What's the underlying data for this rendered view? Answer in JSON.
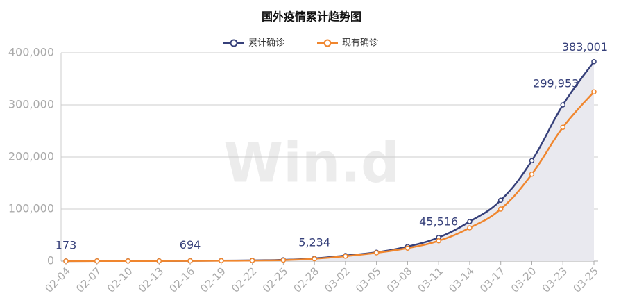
{
  "chart_data": {
    "type": "line",
    "title": "国外疫情累计趋势图",
    "watermark": "Win.d",
    "categories": [
      "02-04",
      "02-07",
      "02-10",
      "02-13",
      "02-16",
      "02-19",
      "02-22",
      "02-25",
      "02-28",
      "03-02",
      "03-05",
      "03-08",
      "03-11",
      "03-14",
      "03-17",
      "03-20",
      "03-23",
      "03-25"
    ],
    "series": [
      {
        "name": "累计确诊",
        "color": "#36407a",
        "area": true,
        "values": [
          173,
          300,
          400,
          450,
          694,
          1000,
          1500,
          2500,
          5234,
          10700,
          17000,
          28000,
          45516,
          76000,
          117000,
          193000,
          299953,
          383001
        ],
        "value_labels": [
          "173",
          null,
          null,
          null,
          "694",
          null,
          null,
          null,
          "5,234",
          null,
          null,
          null,
          "45,516",
          null,
          null,
          null,
          "299,953",
          "383,001"
        ]
      },
      {
        "name": "现有确诊",
        "color": "#f0862e",
        "values": [
          150,
          280,
          350,
          400,
          550,
          780,
          1100,
          1900,
          4500,
          9500,
          16000,
          25000,
          39000,
          64000,
          100000,
          167000,
          257000,
          325000
        ]
      }
    ],
    "ylim": [
      0,
      400000
    ],
    "yticks": [
      0,
      {
        "value": 100000,
        "label": "100,000"
      },
      {
        "value": 200000,
        "label": "200,000"
      },
      {
        "value": 300000,
        "label": "300,000"
      },
      {
        "value": 400000,
        "label": "400,000"
      }
    ],
    "grid": true
  }
}
